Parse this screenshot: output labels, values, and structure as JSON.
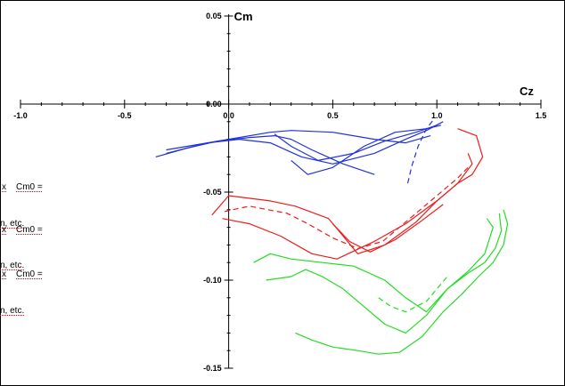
{
  "chart_data": {
    "type": "line",
    "title": "",
    "xlabel": "Cz",
    "ylabel": "Cm",
    "xlim": [
      -1.0,
      1.5
    ],
    "ylim": [
      -0.15,
      0.05
    ],
    "x_ticks": [
      -1.0,
      -0.5,
      0.0,
      0.5,
      1.0,
      1.5
    ],
    "x_tick_labels": [
      "-1.0",
      "-0.5",
      "0.0",
      "0.5",
      "1.0",
      "1.5"
    ],
    "y_ticks": [
      0.05,
      0.0,
      -0.05,
      -0.1,
      -0.15
    ],
    "y_tick_labels": [
      "0.05",
      "0.00",
      "-0.05",
      "-0.10",
      "-0.15"
    ],
    "grid": false,
    "legend": "none",
    "series": [
      {
        "color": "#2030e0",
        "dash": "solid",
        "points": [
          [
            -0.35,
            -0.03
          ],
          [
            -0.2,
            -0.025
          ],
          [
            -0.05,
            -0.021
          ],
          [
            0.1,
            -0.019
          ],
          [
            0.22,
            -0.018
          ],
          [
            0.3,
            -0.02
          ],
          [
            0.4,
            -0.026
          ],
          [
            0.55,
            -0.034
          ],
          [
            0.7,
            -0.04
          ]
        ]
      },
      {
        "color": "#2030e0",
        "dash": "solid",
        "points": [
          [
            -0.3,
            -0.028
          ],
          [
            -0.1,
            -0.022
          ],
          [
            0.05,
            -0.02
          ],
          [
            0.2,
            -0.022
          ],
          [
            0.35,
            -0.03
          ],
          [
            0.5,
            -0.034
          ],
          [
            0.7,
            -0.028
          ],
          [
            0.85,
            -0.02
          ],
          [
            0.95,
            -0.015
          ],
          [
            1.03,
            -0.01
          ]
        ]
      },
      {
        "color": "#2030e0",
        "dash": "solid",
        "points": [
          [
            -0.3,
            -0.026
          ],
          [
            0.0,
            -0.02
          ],
          [
            0.2,
            -0.016
          ],
          [
            0.3,
            -0.015
          ],
          [
            0.5,
            -0.016
          ],
          [
            0.7,
            -0.02
          ],
          [
            0.85,
            -0.022
          ],
          [
            0.97,
            -0.018
          ]
        ]
      },
      {
        "color": "#2030e0",
        "dash": "solid",
        "points": [
          [
            0.22,
            -0.017
          ],
          [
            0.3,
            -0.024
          ],
          [
            0.43,
            -0.032
          ],
          [
            0.6,
            -0.028
          ],
          [
            0.75,
            -0.021
          ],
          [
            0.9,
            -0.016
          ],
          [
            1.0,
            -0.012
          ]
        ]
      },
      {
        "color": "#2030e0",
        "dash": "solid",
        "points": [
          [
            0.3,
            -0.032
          ],
          [
            0.38,
            -0.04
          ],
          [
            0.5,
            -0.036
          ],
          [
            0.65,
            -0.024
          ],
          [
            0.8,
            -0.016
          ],
          [
            0.95,
            -0.014
          ],
          [
            1.02,
            -0.012
          ]
        ]
      },
      {
        "color": "#2030e0",
        "dash": "dashed",
        "points": [
          [
            0.86,
            -0.045
          ],
          [
            0.88,
            -0.035
          ],
          [
            0.91,
            -0.024
          ],
          [
            0.95,
            -0.014
          ],
          [
            0.99,
            -0.008
          ]
        ]
      },
      {
        "color": "#ec1c1c",
        "dash": "solid",
        "points": [
          [
            -0.03,
            -0.065
          ],
          [
            0.1,
            -0.068
          ],
          [
            0.25,
            -0.075
          ],
          [
            0.4,
            -0.085
          ],
          [
            0.52,
            -0.088
          ],
          [
            0.7,
            -0.078
          ],
          [
            0.85,
            -0.068
          ],
          [
            1.0,
            -0.055
          ],
          [
            1.1,
            -0.045
          ],
          [
            1.17,
            -0.04
          ],
          [
            1.22,
            -0.03
          ],
          [
            1.19,
            -0.018
          ],
          [
            1.1,
            -0.014
          ]
        ]
      },
      {
        "color": "#ec1c1c",
        "dash": "solid",
        "points": [
          [
            -0.08,
            -0.063
          ],
          [
            0.0,
            -0.052
          ],
          [
            0.2,
            -0.055
          ],
          [
            0.32,
            -0.058
          ],
          [
            0.48,
            -0.065
          ],
          [
            0.55,
            -0.075
          ],
          [
            0.62,
            -0.085
          ],
          [
            0.75,
            -0.08
          ],
          [
            0.9,
            -0.067
          ],
          [
            1.0,
            -0.055
          ],
          [
            1.1,
            -0.045
          ],
          [
            1.17,
            -0.034
          ],
          [
            1.15,
            -0.028
          ]
        ]
      },
      {
        "color": "#ec1c1c",
        "dash": "dashed",
        "points": [
          [
            -0.02,
            -0.061
          ],
          [
            0.1,
            -0.058
          ],
          [
            0.28,
            -0.062
          ],
          [
            0.38,
            -0.068
          ],
          [
            0.5,
            -0.076
          ],
          [
            0.62,
            -0.082
          ],
          [
            0.74,
            -0.078
          ],
          [
            0.88,
            -0.064
          ],
          [
            1.0,
            -0.052
          ],
          [
            1.1,
            -0.042
          ],
          [
            1.15,
            -0.036
          ]
        ]
      },
      {
        "color": "#ec1c1c",
        "dash": "solid",
        "points": [
          [
            0.5,
            -0.068
          ],
          [
            0.58,
            -0.078
          ],
          [
            0.68,
            -0.084
          ],
          [
            0.8,
            -0.077
          ],
          [
            0.93,
            -0.066
          ],
          [
            1.03,
            -0.057
          ]
        ]
      },
      {
        "color": "#22dd22",
        "dash": "solid",
        "points": [
          [
            0.12,
            -0.09
          ],
          [
            0.2,
            -0.085
          ],
          [
            0.3,
            -0.088
          ],
          [
            0.45,
            -0.09
          ],
          [
            0.6,
            -0.092
          ],
          [
            0.75,
            -0.1
          ],
          [
            0.85,
            -0.11
          ],
          [
            0.95,
            -0.118
          ],
          [
            1.05,
            -0.105
          ],
          [
            1.15,
            -0.095
          ],
          [
            1.23,
            -0.085
          ],
          [
            1.27,
            -0.07
          ],
          [
            1.24,
            -0.065
          ]
        ]
      },
      {
        "color": "#22dd22",
        "dash": "solid",
        "points": [
          [
            0.18,
            -0.1
          ],
          [
            0.3,
            -0.098
          ],
          [
            0.37,
            -0.094
          ],
          [
            0.45,
            -0.098
          ],
          [
            0.55,
            -0.105
          ],
          [
            0.65,
            -0.115
          ],
          [
            0.75,
            -0.125
          ],
          [
            0.85,
            -0.13
          ],
          [
            0.95,
            -0.12
          ],
          [
            1.05,
            -0.105
          ],
          [
            1.15,
            -0.096
          ],
          [
            1.23,
            -0.09
          ],
          [
            1.28,
            -0.082
          ],
          [
            1.31,
            -0.072
          ],
          [
            1.3,
            -0.062
          ]
        ]
      },
      {
        "color": "#22dd22",
        "dash": "solid",
        "points": [
          [
            0.32,
            -0.13
          ],
          [
            0.4,
            -0.134
          ],
          [
            0.5,
            -0.138
          ],
          [
            0.62,
            -0.14
          ],
          [
            0.72,
            -0.142
          ],
          [
            0.82,
            -0.141
          ],
          [
            0.93,
            -0.132
          ],
          [
            1.03,
            -0.118
          ],
          [
            1.12,
            -0.108
          ],
          [
            1.2,
            -0.098
          ],
          [
            1.27,
            -0.09
          ],
          [
            1.32,
            -0.08
          ],
          [
            1.34,
            -0.068
          ],
          [
            1.32,
            -0.06
          ]
        ]
      },
      {
        "color": "#22dd22",
        "dash": "dashed",
        "points": [
          [
            0.72,
            -0.11
          ],
          [
            0.78,
            -0.115
          ],
          [
            0.85,
            -0.118
          ],
          [
            0.95,
            -0.112
          ],
          [
            1.05,
            -0.098
          ]
        ]
      }
    ]
  },
  "side_notes": [
    "x",
    "Cm0 =",
    "n, etc.",
    "x",
    "Cm0 =",
    "n, etc.",
    "x",
    "Cm0 =",
    "n, etc."
  ]
}
